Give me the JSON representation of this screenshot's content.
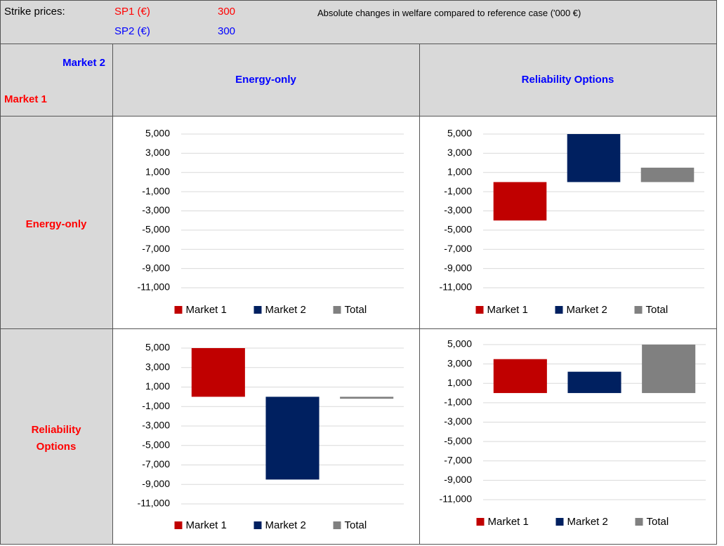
{
  "header": {
    "label": "Strike prices:",
    "sp1_label": "SP1 (€)",
    "sp1_value": 300,
    "sp2_label": "SP2 (€)",
    "sp2_value": 300,
    "note": "Absolute changes in welfare compared to reference case ('000 €)"
  },
  "table": {
    "col_axis": "Market 2",
    "row_axis": "Market 1",
    "columns": [
      "Energy-only",
      "Reliability Options"
    ],
    "rows": [
      "Energy-only",
      "Reliability Options"
    ]
  },
  "chart_data": [
    {
      "type": "bar",
      "categories": [
        null
      ],
      "series": [
        {
          "name": "Market 1",
          "color": "#c00000",
          "values": [
            0
          ]
        },
        {
          "name": "Market 2",
          "color": "#002060",
          "values": [
            0
          ]
        },
        {
          "name": "Total",
          "color": "#808080",
          "values": [
            0
          ]
        }
      ],
      "ylim": [
        -11000,
        5000
      ],
      "yticks": [
        {
          "value": 5000,
          "label": "5,000"
        },
        {
          "value": 3000,
          "label": "3,000"
        },
        {
          "value": 1000,
          "label": "1,000"
        },
        {
          "value": -1000,
          "label": "-1,000"
        },
        {
          "value": -3000,
          "label": "-3,000"
        },
        {
          "value": -5000,
          "label": "-5,000"
        },
        {
          "value": -7000,
          "label": "-7,000"
        },
        {
          "value": -9000,
          "label": "-9,000"
        },
        {
          "value": -11000,
          "label": "-11,000"
        }
      ],
      "grid": true,
      "legend": "bottom"
    },
    {
      "type": "bar",
      "categories": [
        null
      ],
      "series": [
        {
          "name": "Market 1",
          "color": "#c00000",
          "values": [
            -4000
          ]
        },
        {
          "name": "Market 2",
          "color": "#002060",
          "values": [
            5000
          ]
        },
        {
          "name": "Total",
          "color": "#808080",
          "values": [
            1500
          ]
        }
      ],
      "ylim": [
        -11000,
        5000
      ],
      "yticks": [
        {
          "value": 5000,
          "label": "5,000"
        },
        {
          "value": 3000,
          "label": "3,000"
        },
        {
          "value": 1000,
          "label": "1,000"
        },
        {
          "value": -1000,
          "label": "-1,000"
        },
        {
          "value": -3000,
          "label": "-3,000"
        },
        {
          "value": -5000,
          "label": "-5,000"
        },
        {
          "value": -7000,
          "label": "-7,000"
        },
        {
          "value": -9000,
          "label": "-9,000"
        },
        {
          "value": -11000,
          "label": "-11,000"
        }
      ],
      "grid": true,
      "legend": "bottom"
    },
    {
      "type": "bar",
      "categories": [
        null
      ],
      "series": [
        {
          "name": "Market 1",
          "color": "#c00000",
          "values": [
            5000
          ]
        },
        {
          "name": "Market 2",
          "color": "#002060",
          "values": [
            -8500
          ]
        },
        {
          "name": "Total",
          "color": "#808080",
          "values": [
            -200
          ]
        }
      ],
      "ylim": [
        -11000,
        5000
      ],
      "yticks": [
        {
          "value": 5000,
          "label": "5,000"
        },
        {
          "value": 3000,
          "label": "3,000"
        },
        {
          "value": 1000,
          "label": "1,000"
        },
        {
          "value": -1000,
          "label": "-1,000"
        },
        {
          "value": -3000,
          "label": "-3,000"
        },
        {
          "value": -5000,
          "label": "-5,000"
        },
        {
          "value": -7000,
          "label": "-7,000"
        },
        {
          "value": -9000,
          "label": "-9,000"
        },
        {
          "value": -11000,
          "label": "-11,000"
        }
      ],
      "grid": true,
      "legend": "bottom"
    },
    {
      "type": "bar",
      "categories": [
        null
      ],
      "series": [
        {
          "name": "Market 1",
          "color": "#c00000",
          "values": [
            3500
          ]
        },
        {
          "name": "Market 2",
          "color": "#002060",
          "values": [
            2200
          ]
        },
        {
          "name": "Total",
          "color": "#808080",
          "values": [
            5000
          ]
        }
      ],
      "ylim": [
        -11000,
        5000
      ],
      "yticks": [
        {
          "value": 5000,
          "label": "5,000"
        },
        {
          "value": 3000,
          "label": "3,000"
        },
        {
          "value": 1000,
          "label": "1,000"
        },
        {
          "value": -1000,
          "label": "-1,000"
        },
        {
          "value": -3000,
          "label": "-3,000"
        },
        {
          "value": -5000,
          "label": "-5,000"
        },
        {
          "value": -7000,
          "label": "-7,000"
        },
        {
          "value": -9000,
          "label": "-9,000"
        },
        {
          "value": -11000,
          "label": "-11,000"
        }
      ],
      "grid": true,
      "legend": "bottom"
    }
  ]
}
